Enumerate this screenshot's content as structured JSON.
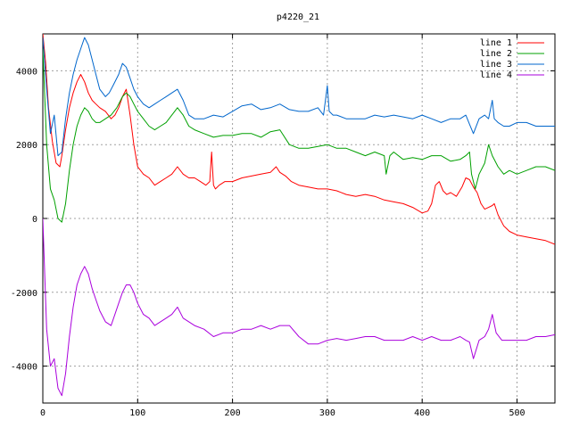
{
  "chart_data": {
    "type": "line",
    "title": "p4220_21",
    "xlim": [
      0,
      540
    ],
    "ylim": [
      -5000,
      5000
    ],
    "x_ticks": [
      0,
      100,
      200,
      300,
      400,
      500
    ],
    "y_ticks": [
      -4000,
      -2000,
      0,
      2000,
      4000
    ],
    "grid": true,
    "legend_position": "top-right",
    "series": [
      {
        "name": "line 1",
        "color": "#ff0000",
        "x": [
          0,
          3,
          6,
          10,
          14,
          18,
          20,
          24,
          28,
          32,
          36,
          40,
          44,
          48,
          52,
          56,
          60,
          66,
          72,
          76,
          80,
          84,
          88,
          92,
          96,
          100,
          106,
          112,
          118,
          124,
          130,
          136,
          142,
          148,
          154,
          160,
          166,
          172,
          176,
          178,
          180,
          182,
          186,
          192,
          200,
          210,
          220,
          230,
          240,
          246,
          250,
          256,
          262,
          270,
          280,
          290,
          300,
          310,
          320,
          330,
          340,
          350,
          360,
          370,
          380,
          390,
          400,
          406,
          410,
          414,
          418,
          422,
          426,
          430,
          436,
          442,
          446,
          450,
          454,
          458,
          462,
          466,
          470,
          474,
          476,
          480,
          486,
          492,
          500,
          510,
          520,
          530,
          540
        ],
        "y": [
          5000,
          4200,
          3000,
          2100,
          1500,
          1400,
          1700,
          2400,
          3000,
          3400,
          3700,
          3900,
          3700,
          3400,
          3200,
          3100,
          3000,
          2900,
          2700,
          2800,
          3000,
          3300,
          3500,
          2800,
          2000,
          1400,
          1200,
          1100,
          900,
          1000,
          1100,
          1200,
          1400,
          1200,
          1100,
          1100,
          1000,
          900,
          1000,
          1800,
          900,
          800,
          900,
          1000,
          1000,
          1100,
          1150,
          1200,
          1250,
          1400,
          1250,
          1150,
          1000,
          900,
          850,
          800,
          800,
          750,
          650,
          600,
          650,
          600,
          500,
          450,
          400,
          300,
          150,
          200,
          400,
          900,
          1000,
          750,
          650,
          700,
          600,
          850,
          1100,
          1050,
          850,
          700,
          400,
          250,
          300,
          350,
          400,
          100,
          -200,
          -350,
          -450,
          -500,
          -550,
          -600,
          -700
        ]
      },
      {
        "name": "line 2",
        "color": "#00a000",
        "x": [
          0,
          4,
          8,
          12,
          16,
          20,
          24,
          28,
          32,
          36,
          40,
          44,
          48,
          52,
          56,
          60,
          66,
          72,
          78,
          84,
          88,
          92,
          96,
          100,
          106,
          112,
          118,
          124,
          130,
          136,
          142,
          148,
          154,
          160,
          170,
          180,
          190,
          200,
          210,
          220,
          230,
          240,
          250,
          260,
          270,
          280,
          290,
          300,
          310,
          320,
          330,
          340,
          350,
          360,
          362,
          366,
          370,
          380,
          390,
          400,
          410,
          420,
          430,
          440,
          446,
          450,
          452,
          456,
          460,
          466,
          470,
          474,
          480,
          486,
          492,
          500,
          510,
          520,
          530,
          540
        ],
        "y": [
          4600,
          2000,
          800,
          500,
          0,
          -100,
          400,
          1300,
          2000,
          2500,
          2800,
          3000,
          2900,
          2700,
          2600,
          2600,
          2700,
          2800,
          3000,
          3300,
          3400,
          3300,
          3100,
          2900,
          2700,
          2500,
          2400,
          2500,
          2600,
          2800,
          3000,
          2800,
          2500,
          2400,
          2300,
          2200,
          2250,
          2250,
          2300,
          2300,
          2200,
          2350,
          2400,
          2000,
          1900,
          1900,
          1950,
          2000,
          1900,
          1900,
          1800,
          1700,
          1800,
          1700,
          1200,
          1700,
          1800,
          1600,
          1650,
          1600,
          1700,
          1700,
          1550,
          1600,
          1700,
          1800,
          1200,
          800,
          1200,
          1500,
          2000,
          1700,
          1400,
          1200,
          1300,
          1200,
          1300,
          1400,
          1400,
          1300
        ]
      },
      {
        "name": "line 3",
        "color": "#0066cc",
        "x": [
          0,
          4,
          8,
          12,
          16,
          20,
          24,
          28,
          32,
          36,
          40,
          44,
          48,
          52,
          56,
          60,
          66,
          70,
          74,
          80,
          84,
          88,
          92,
          96,
          100,
          106,
          112,
          118,
          124,
          130,
          136,
          142,
          148,
          154,
          160,
          170,
          180,
          190,
          200,
          210,
          220,
          230,
          240,
          250,
          260,
          270,
          280,
          290,
          296,
          300,
          302,
          306,
          310,
          320,
          330,
          340,
          350,
          360,
          370,
          380,
          390,
          400,
          410,
          420,
          430,
          440,
          446,
          450,
          454,
          460,
          466,
          470,
          474,
          476,
          480,
          486,
          492,
          500,
          510,
          520,
          530,
          540
        ],
        "y": [
          4900,
          3500,
          2300,
          2800,
          1700,
          1800,
          2700,
          3400,
          3900,
          4300,
          4600,
          4900,
          4700,
          4300,
          3900,
          3500,
          3300,
          3400,
          3600,
          3900,
          4200,
          4100,
          3800,
          3500,
          3300,
          3100,
          3000,
          3100,
          3200,
          3300,
          3400,
          3500,
          3200,
          2800,
          2700,
          2700,
          2800,
          2750,
          2900,
          3050,
          3100,
          2950,
          3000,
          3100,
          2950,
          2900,
          2900,
          3000,
          2800,
          3600,
          2900,
          2800,
          2800,
          2700,
          2700,
          2700,
          2800,
          2750,
          2800,
          2750,
          2700,
          2800,
          2700,
          2600,
          2700,
          2700,
          2800,
          2550,
          2300,
          2700,
          2800,
          2700,
          3200,
          2700,
          2600,
          2500,
          2500,
          2600,
          2600,
          2500,
          2500,
          2500
        ]
      },
      {
        "name": "line 4",
        "color": "#aa00dd",
        "x": [
          0,
          2,
          4,
          8,
          12,
          16,
          20,
          24,
          28,
          32,
          36,
          40,
          44,
          48,
          52,
          56,
          60,
          66,
          72,
          76,
          80,
          84,
          88,
          92,
          96,
          100,
          106,
          112,
          118,
          124,
          130,
          136,
          142,
          148,
          154,
          160,
          170,
          180,
          190,
          200,
          210,
          220,
          230,
          240,
          250,
          260,
          270,
          280,
          290,
          300,
          310,
          320,
          330,
          340,
          350,
          360,
          370,
          380,
          390,
          400,
          410,
          420,
          430,
          440,
          446,
          450,
          454,
          460,
          466,
          470,
          474,
          478,
          484,
          490,
          500,
          510,
          520,
          530,
          540
        ],
        "y": [
          0,
          -1500,
          -3000,
          -4000,
          -3800,
          -4600,
          -4800,
          -4200,
          -3200,
          -2400,
          -1800,
          -1500,
          -1300,
          -1500,
          -1900,
          -2200,
          -2500,
          -2800,
          -2900,
          -2600,
          -2300,
          -2000,
          -1800,
          -1800,
          -2000,
          -2300,
          -2600,
          -2700,
          -2900,
          -2800,
          -2700,
          -2600,
          -2400,
          -2700,
          -2800,
          -2900,
          -3000,
          -3200,
          -3100,
          -3100,
          -3000,
          -3000,
          -2900,
          -3000,
          -2900,
          -2900,
          -3200,
          -3400,
          -3400,
          -3300,
          -3250,
          -3300,
          -3250,
          -3200,
          -3200,
          -3300,
          -3300,
          -3300,
          -3200,
          -3300,
          -3200,
          -3300,
          -3300,
          -3200,
          -3300,
          -3350,
          -3800,
          -3300,
          -3200,
          -3000,
          -2600,
          -3100,
          -3300,
          -3300,
          -3300,
          -3300,
          -3200,
          -3200,
          -3150
        ]
      }
    ]
  }
}
